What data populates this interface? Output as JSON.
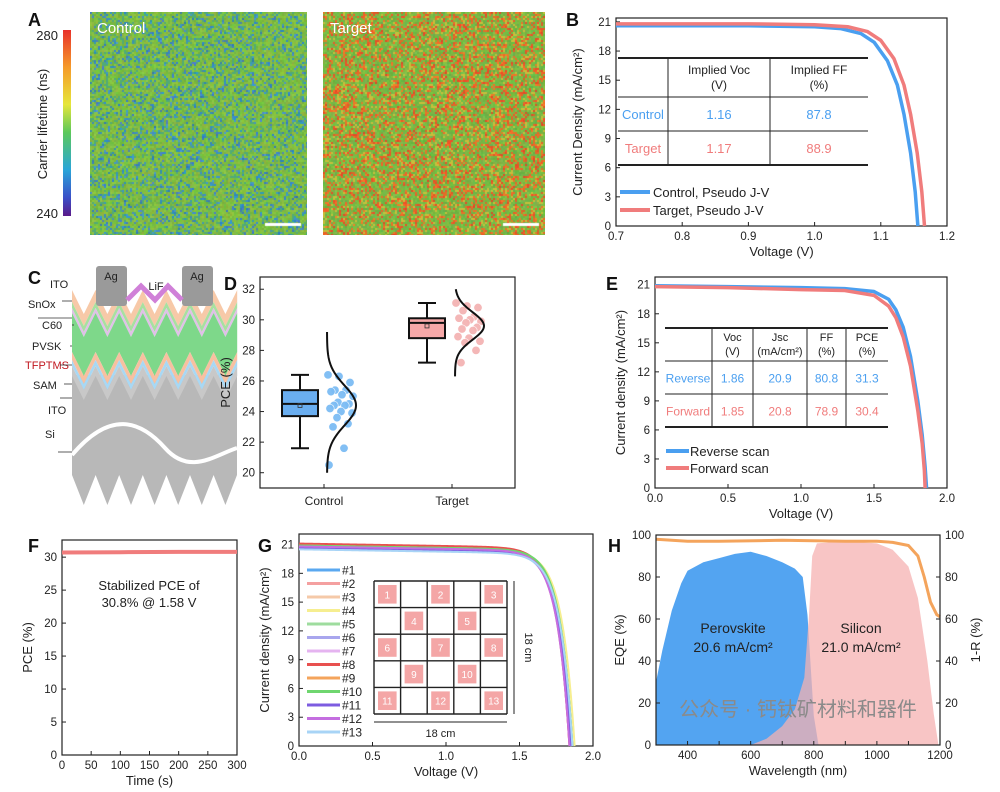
{
  "panels": {
    "A": "A",
    "B": "B",
    "C": "C",
    "D": "D",
    "E": "E",
    "F": "F",
    "G": "G",
    "H": "H"
  },
  "panel_c": {
    "electrode_1": "Ag",
    "electrode_2": "Ag",
    "lif": "LiF",
    "layers": [
      "ITO",
      "SnOx",
      "C60",
      "PVSK",
      "TFPTMS",
      "SAM",
      "ITO",
      "Si"
    ]
  },
  "watermark": "公众号 · 钙钛矿材料和器件",
  "colors": {
    "blue": "#4a9ff0",
    "red": "#f07c7c",
    "tfptms": "#c0161e",
    "orange": "#f4a45c"
  },
  "chart_data": [
    {
      "type": "heatmap",
      "panel": "A",
      "images": [
        "Control",
        "Target"
      ],
      "colorbar": {
        "label": "Carrier lifetime (ns)",
        "max": "280",
        "min": "240"
      }
    },
    {
      "type": "line",
      "panel": "B",
      "xlabel": "Voltage (V)",
      "ylabel": "Current Density (mA/cm²)",
      "xlim": [
        0.7,
        1.2
      ],
      "ylim": [
        0,
        21.4
      ],
      "xticks": [
        "0.7",
        "0.8",
        "0.9",
        "1.0",
        "1.1",
        "1.2"
      ],
      "yticks": [
        "0",
        "3",
        "6",
        "9",
        "12",
        "15",
        "18",
        "21"
      ],
      "legend": "bottom-left",
      "series": [
        {
          "name": "Control, Pseudo J-V",
          "color": "#4a9ff0",
          "points": [
            [
              0.7,
              20.6
            ],
            [
              0.9,
              20.6
            ],
            [
              1.0,
              20.5
            ],
            [
              1.04,
              20.3
            ],
            [
              1.07,
              19.8
            ],
            [
              1.09,
              18.9
            ],
            [
              1.11,
              17.0
            ],
            [
              1.125,
              14.5
            ],
            [
              1.135,
              11.5
            ],
            [
              1.145,
              7.5
            ],
            [
              1.152,
              3.5
            ],
            [
              1.156,
              0
            ]
          ]
        },
        {
          "name": "Target, Pseudo J-V",
          "color": "#f07c7c",
          "points": [
            [
              0.7,
              20.8
            ],
            [
              0.9,
              20.8
            ],
            [
              1.0,
              20.7
            ],
            [
              1.05,
              20.5
            ],
            [
              1.08,
              20.0
            ],
            [
              1.1,
              19.1
            ],
            [
              1.12,
              17.2
            ],
            [
              1.135,
              14.5
            ],
            [
              1.145,
              11.5
            ],
            [
              1.155,
              7.5
            ],
            [
              1.162,
              3.5
            ],
            [
              1.166,
              0
            ]
          ]
        }
      ],
      "table": {
        "headers": [
          [
            "Implied Voc",
            "(V)"
          ],
          [
            "Implied FF",
            "(%)"
          ]
        ],
        "rows": [
          {
            "label": "Control",
            "voc": "1.16",
            "ff": "87.8"
          },
          {
            "label": "Target",
            "voc": "1.17",
            "ff": "88.9"
          }
        ]
      }
    },
    {
      "type": "box",
      "panel": "D",
      "ylabel": "PCE (%)",
      "ylim": [
        19,
        32.8
      ],
      "yticks": [
        "20",
        "22",
        "24",
        "26",
        "28",
        "30",
        "32"
      ],
      "categories": [
        "Control",
        "Target"
      ],
      "boxes": [
        {
          "name": "Control",
          "min": 21.6,
          "q1": 23.7,
          "median": 24.5,
          "q3": 25.4,
          "max": 26.4,
          "mean": 24.4,
          "sd": 1.3,
          "curve_range": [
            20.0,
            29.2
          ],
          "points": [
            26.4,
            26.3,
            25.9,
            25.4,
            25.4,
            25.3,
            25.1,
            25.0,
            24.6,
            24.5,
            24.4,
            24.4,
            24.2,
            24.0,
            23.9,
            23.6,
            23.2,
            23.0,
            21.6,
            20.5
          ]
        },
        {
          "name": "Target",
          "min": 27.2,
          "q1": 28.8,
          "median": 29.8,
          "q3": 30.1,
          "max": 31.1,
          "mean": 29.6,
          "sd": 0.9,
          "curve_range": [
            26.3,
            32.0
          ],
          "points": [
            31.1,
            30.9,
            30.8,
            30.6,
            30.2,
            30.1,
            30.0,
            29.9,
            29.8,
            29.5,
            29.4,
            29.3,
            28.9,
            28.8,
            28.6,
            28.5,
            28.0,
            27.2
          ]
        }
      ]
    },
    {
      "type": "line",
      "panel": "E",
      "xlabel": "Voltage (V)",
      "ylabel": "Current density (mA/cm²)",
      "xlim": [
        0,
        2
      ],
      "ylim": [
        0,
        21.8
      ],
      "xticks": [
        "0.0",
        "0.5",
        "1.0",
        "1.5",
        "2.0"
      ],
      "yticks": [
        "0",
        "3",
        "6",
        "9",
        "12",
        "15",
        "18",
        "21"
      ],
      "legend": "bottom-left",
      "series": [
        {
          "name": "Reverse scan",
          "color": "#4a9ff0",
          "points": [
            [
              0,
              20.9
            ],
            [
              0.5,
              20.8
            ],
            [
              1.0,
              20.7
            ],
            [
              1.3,
              20.6
            ],
            [
              1.5,
              20.3
            ],
            [
              1.6,
              19.5
            ],
            [
              1.65,
              18.4
            ],
            [
              1.7,
              16.6
            ],
            [
              1.75,
              13.6
            ],
            [
              1.8,
              9.0
            ],
            [
              1.83,
              5.5
            ],
            [
              1.85,
              2.2
            ],
            [
              1.86,
              0
            ]
          ]
        },
        {
          "name": "Forward scan",
          "color": "#f07c7c",
          "points": [
            [
              0,
              20.8
            ],
            [
              0.5,
              20.7
            ],
            [
              1.0,
              20.5
            ],
            [
              1.3,
              20.4
            ],
            [
              1.5,
              19.9
            ],
            [
              1.6,
              18.8
            ],
            [
              1.65,
              17.6
            ],
            [
              1.7,
              15.6
            ],
            [
              1.75,
              12.6
            ],
            [
              1.8,
              8.0
            ],
            [
              1.83,
              4.6
            ],
            [
              1.845,
              1.8
            ],
            [
              1.85,
              0
            ]
          ]
        }
      ],
      "table": {
        "headers": [
          [
            "Voc",
            "(V)"
          ],
          [
            "Jsc",
            "(mA/cm²)"
          ],
          [
            "FF",
            "(%)"
          ],
          [
            "PCE",
            "(%)"
          ]
        ],
        "rows": [
          {
            "label": "Reverse",
            "values": [
              "1.86",
              "20.9",
              "80.8",
              "31.3"
            ]
          },
          {
            "label": "Forward",
            "values": [
              "1.85",
              "20.8",
              "78.9",
              "30.4"
            ]
          }
        ]
      }
    },
    {
      "type": "line",
      "panel": "F",
      "xlabel": "Time (s)",
      "ylabel": "PCE (%)",
      "xlim": [
        0,
        300
      ],
      "ylim": [
        0,
        32.6
      ],
      "xticks": [
        "0",
        "50",
        "100",
        "150",
        "200",
        "250",
        "300"
      ],
      "yticks": [
        "0",
        "5",
        "10",
        "15",
        "20",
        "25",
        "30"
      ],
      "series": [
        {
          "name": "Stabilized PCE",
          "color": "#f07c7c",
          "points": [
            [
              0,
              30.7
            ],
            [
              100,
              30.75
            ],
            [
              200,
              30.8
            ],
            [
              300,
              30.8
            ]
          ]
        }
      ],
      "annotation": [
        "Stabilized PCE of",
        "30.8% @ 1.58 V"
      ]
    },
    {
      "type": "line",
      "panel": "G",
      "xlabel": "Voltage (V)",
      "ylabel": "Current density (mA/cm²)",
      "xlim": [
        0,
        2
      ],
      "ylim": [
        0,
        22.1
      ],
      "xticks": [
        "0.0",
        "0.5",
        "1.0",
        "1.5",
        "2.0"
      ],
      "yticks": [
        "0",
        "3",
        "6",
        "9",
        "12",
        "15",
        "18",
        "21"
      ],
      "legend": "left",
      "series": [
        {
          "name": "#1",
          "color": "#5aa8f0",
          "jsc": 20.6,
          "voc": 1.86
        },
        {
          "name": "#2",
          "color": "#f4a0a0",
          "jsc": 20.8,
          "voc": 1.84
        },
        {
          "name": "#3",
          "color": "#f5c9a8",
          "jsc": 20.9,
          "voc": 1.85
        },
        {
          "name": "#4",
          "color": "#f6ee90",
          "jsc": 20.7,
          "voc": 1.875
        },
        {
          "name": "#5",
          "color": "#9edc9e",
          "jsc": 20.8,
          "voc": 1.86
        },
        {
          "name": "#6",
          "color": "#a9a6ee",
          "jsc": 20.6,
          "voc": 1.85
        },
        {
          "name": "#7",
          "color": "#e5b4f0",
          "jsc": 20.7,
          "voc": 1.85
        },
        {
          "name": "#8",
          "color": "#e8504f",
          "jsc": 21.1,
          "voc": 1.84
        },
        {
          "name": "#9",
          "color": "#f4a45c",
          "jsc": 20.9,
          "voc": 1.85
        },
        {
          "name": "#10",
          "color": "#6fd66f",
          "jsc": 20.9,
          "voc": 1.86
        },
        {
          "name": "#11",
          "color": "#7d5ce0",
          "jsc": 20.7,
          "voc": 1.85
        },
        {
          "name": "#12",
          "color": "#c46ee0",
          "jsc": 20.8,
          "voc": 1.84
        },
        {
          "name": "#13",
          "color": "#a8d4f6",
          "jsc": 20.5,
          "voc": 1.86
        }
      ],
      "inset": {
        "cells": [
          "1",
          "2",
          "3",
          "4",
          "5",
          "6",
          "7",
          "8",
          "9",
          "10",
          "11",
          "12",
          "13"
        ],
        "width_label": "18 cm",
        "height_label": "18 cm"
      }
    },
    {
      "type": "area",
      "panel": "H",
      "xlabel": "Wavelength (nm)",
      "ylabel": "EQE (%)",
      "ylabel_right": "1-R (%)",
      "xlim": [
        300,
        1200
      ],
      "ylim": [
        0,
        100
      ],
      "xticks": [
        "300",
        "400",
        "500",
        "600",
        "700",
        "800",
        "900",
        "1000",
        "1100",
        "1200"
      ],
      "xtick_labels_shown": [
        "400",
        "600",
        "800",
        "1000",
        "1200"
      ],
      "yticks": [
        "0",
        "20",
        "40",
        "60",
        "80",
        "100"
      ],
      "yticks_right": [
        "0",
        "20",
        "40",
        "60",
        "80",
        "100"
      ],
      "series": [
        {
          "name": "Perovskite",
          "label": "Perovskite",
          "jsc": "20.6 mA/cm²",
          "color": "#4a9ff0",
          "points": [
            [
              300,
              30
            ],
            [
              320,
              45
            ],
            [
              350,
              64
            ],
            [
              380,
              77
            ],
            [
              400,
              83
            ],
            [
              450,
              87
            ],
            [
              500,
              89
            ],
            [
              550,
              91
            ],
            [
              600,
              92
            ],
            [
              650,
              90
            ],
            [
              700,
              87
            ],
            [
              740,
              84
            ],
            [
              765,
              80
            ],
            [
              780,
              62
            ],
            [
              790,
              38
            ],
            [
              800,
              14
            ],
            [
              815,
              0
            ]
          ]
        },
        {
          "name": "Silicon",
          "label": "Silicon",
          "jsc": "21.0 mA/cm²",
          "color": "#f6b2b2",
          "points": [
            [
              600,
              0
            ],
            [
              650,
              3
            ],
            [
              700,
              9
            ],
            [
              740,
              17
            ],
            [
              770,
              32
            ],
            [
              785,
              62
            ],
            [
              795,
              90
            ],
            [
              810,
              96
            ],
            [
              900,
              97
            ],
            [
              1000,
              96
            ],
            [
              1050,
              93
            ],
            [
              1100,
              85
            ],
            [
              1130,
              70
            ],
            [
              1160,
              40
            ],
            [
              1180,
              15
            ],
            [
              1195,
              0
            ]
          ]
        },
        {
          "name": "1-R",
          "color": "#f4a45c",
          "points": [
            [
              300,
              98
            ],
            [
              400,
              97
            ],
            [
              500,
              97
            ],
            [
              700,
              97.5
            ],
            [
              900,
              97
            ],
            [
              1000,
              97
            ],
            [
              1050,
              96.5
            ],
            [
              1100,
              95
            ],
            [
              1130,
              90
            ],
            [
              1150,
              80
            ],
            [
              1170,
              68
            ],
            [
              1190,
              62
            ],
            [
              1200,
              61
            ]
          ]
        }
      ]
    }
  ]
}
